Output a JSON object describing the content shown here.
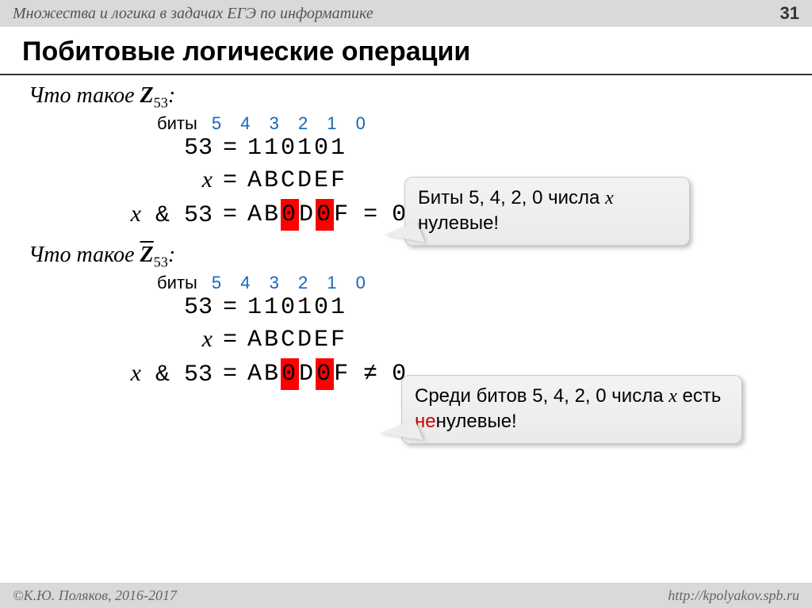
{
  "header": {
    "title": "Множества и логика в задачах ЕГЭ по информатике",
    "page": "31"
  },
  "title": "Побитовые логические операции",
  "section1": {
    "question_prefix": "Что такое ",
    "var_html": "<span class='q-var'>Z</span><span class='q-sub'>53</span>:",
    "bits_label": "биты",
    "bit_positions": "5 4 3 2 1 0",
    "rows": [
      {
        "lhs": "53",
        "rhs_plain": "110101"
      },
      {
        "lhs_html": "<span class='xvar'>x</span>",
        "rhs_plain": "ABCDEF"
      },
      {
        "lhs_html": "<span class='xvar'>x</span> & 53",
        "rhs_seq": [
          "A",
          "B",
          "0*",
          "D",
          "0*",
          "F"
        ],
        "tail": "=  0"
      }
    ]
  },
  "callout1": {
    "html": "Биты 5, 4, 2, 0 числа <span class='xvar'>x</span> нулевые!"
  },
  "section2": {
    "question_prefix": "Что такое ",
    "var_html": "<span class='q-var overline'>Z</span><span class='q-sub'>53</span>:",
    "bits_label": "биты",
    "bit_positions": "5 4 3 2 1 0",
    "rows": [
      {
        "lhs": "53",
        "rhs_plain": "110101"
      },
      {
        "lhs_html": "<span class='xvar'>x</span>",
        "rhs_plain": "ABCDEF"
      },
      {
        "lhs_html": "<span class='xvar'>x</span> & 53",
        "rhs_seq": [
          "A",
          "B",
          "0*",
          "D",
          "0*",
          "F"
        ],
        "tail": "≠  0"
      }
    ]
  },
  "callout2": {
    "html": "Среди битов 5, 4, 2, 0 числа <span class='xvar'>x</span> есть <span class='red-txt'>не</span>нулевые!"
  },
  "footer": {
    "left": "©К.Ю. Поляков, 2016-2017",
    "right": "http://kpolyakov.spb.ru"
  },
  "colors": {
    "header_bg": "#d9d9d9",
    "bit_num_color": "#1565c0",
    "highlight_bg": "#ff0000",
    "neg_color": "#d00000"
  }
}
